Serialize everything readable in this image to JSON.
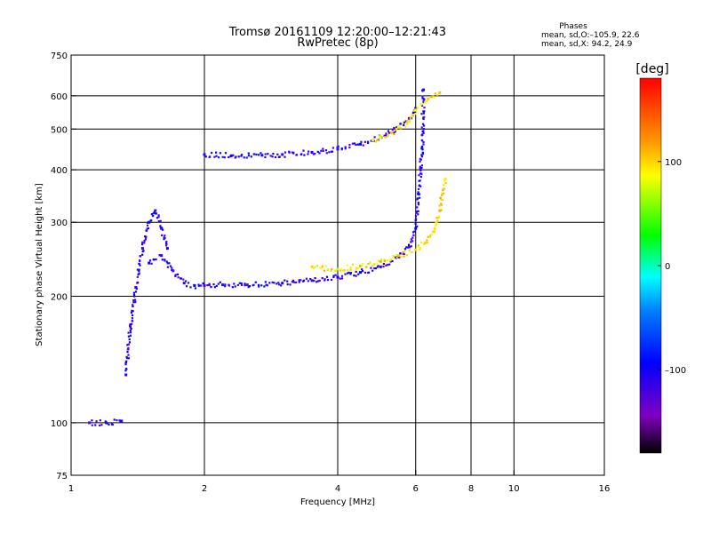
{
  "chart_data": {
    "type": "scatter",
    "title": "Tromsø 20161109 12:20:00–12:21:43",
    "subtitle": "RwPretec (8p)",
    "xlabel": "Frequency [MHz]",
    "ylabel": "Stationary phase Virtual Height [km]",
    "x_scale": "log",
    "y_scale": "log",
    "xlim": [
      1,
      16
    ],
    "ylim": [
      75,
      750
    ],
    "x_ticks": [
      1,
      2,
      4,
      6,
      8,
      10,
      16
    ],
    "x_tick_labels": [
      "1",
      "2",
      "4",
      "6",
      "8",
      "10",
      "16"
    ],
    "y_ticks": [
      75,
      100,
      200,
      300,
      400,
      500,
      600,
      750
    ],
    "y_tick_labels": [
      "75",
      "100",
      "200",
      "300",
      "400",
      "500",
      "600",
      "750"
    ],
    "grid": true,
    "info": {
      "heading": "Phases",
      "line1": "mean, sd,O:–105.9, 22.6",
      "line2": "mean, sd,X:  94.2, 24.9"
    },
    "colorbar": {
      "label": "[deg]",
      "range": [
        -180,
        180
      ],
      "ticks": [
        100,
        0,
        -100
      ],
      "tick_labels": [
        "100",
        "0",
        "–100"
      ],
      "colormap": "rainbow"
    },
    "series": [
      {
        "mode": "O",
        "phase_mean": -105.9,
        "phase_sd": 22.6,
        "segments": [
          {
            "x": [
              1.1,
              1.2,
              1.3
            ],
            "y": [
              100,
              100,
              101
            ]
          },
          {
            "x": [
              1.33,
              1.36,
              1.4,
              1.45,
              1.5,
              1.55,
              1.6,
              1.65
            ],
            "y": [
              130,
              170,
              210,
              260,
              300,
              320,
              290,
              260
            ]
          },
          {
            "x": [
              1.5,
              1.6,
              1.7,
              1.8,
              1.9,
              2.0,
              2.2,
              2.5,
              3.0,
              3.5,
              4.0,
              4.5,
              5.0,
              5.5,
              5.8,
              6.0,
              6.1,
              6.2,
              6.25
            ],
            "y": [
              240,
              250,
              230,
              215,
              212,
              212,
              213,
              213,
              215,
              218,
              222,
              228,
              235,
              248,
              262,
              290,
              350,
              450,
              620
            ]
          },
          {
            "x": [
              2.0,
              2.3,
              2.7,
              3.0,
              3.5,
              4.0,
              4.5,
              5.0,
              5.5,
              5.8,
              6.0
            ],
            "y": [
              435,
              432,
              433,
              435,
              440,
              448,
              460,
              478,
              505,
              530,
              560
            ]
          }
        ]
      },
      {
        "mode": "X",
        "phase_mean": 94.2,
        "phase_sd": 24.9,
        "segments": [
          {
            "x": [
              3.5,
              4.0,
              4.5,
              5.0,
              5.5,
              6.0,
              6.3,
              6.6,
              6.8,
              7.0
            ],
            "y": [
              235,
              232,
              236,
              242,
              250,
              258,
              268,
              285,
              320,
              380
            ]
          },
          {
            "x": [
              4.8,
              5.0,
              5.3,
              5.5,
              5.8,
              6.0,
              6.4,
              6.8
            ],
            "y": [
              470,
              478,
              490,
              505,
              520,
              555,
              590,
              610
            ]
          }
        ]
      }
    ]
  }
}
